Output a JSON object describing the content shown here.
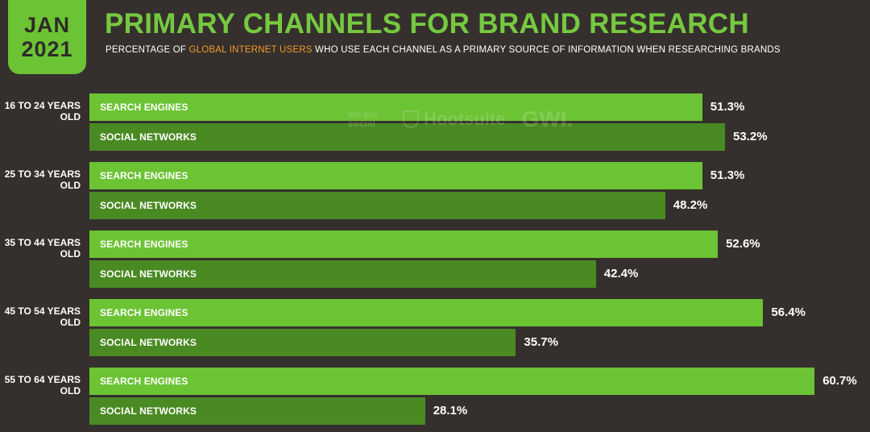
{
  "header": {
    "month": "JAN",
    "year": "2021",
    "title": "PRIMARY CHANNELS FOR BRAND RESEARCH",
    "subtitle_pre": "PERCENTAGE OF ",
    "subtitle_highlight": "GLOBAL INTERNET USERS",
    "subtitle_post": " WHO USE EACH CHANNEL AS A PRIMARY SOURCE OF INFORMATION WHEN RESEARCHING BRANDS"
  },
  "watermark": {
    "wearesocial": "we are social",
    "hootsuite": "Hootsuite",
    "gwi": "GWI."
  },
  "colors": {
    "background": "#35302d",
    "search_engines": "#6cc334",
    "social_networks": "#4a8a23",
    "title": "#76c93f",
    "highlight": "#f39a2a"
  },
  "chart_data": {
    "type": "bar",
    "orientation": "horizontal",
    "categories": [
      "16 TO 24 YEARS OLD",
      "25 TO 34 YEARS OLD",
      "35 TO 44 YEARS OLD",
      "45 TO 54 YEARS OLD",
      "55 TO 64 YEARS OLD"
    ],
    "series": [
      {
        "name": "SEARCH ENGINES",
        "values": [
          51.3,
          51.3,
          52.6,
          56.4,
          60.7
        ],
        "color": "#6cc334"
      },
      {
        "name": "SOCIAL NETWORKS",
        "values": [
          53.2,
          48.2,
          42.4,
          35.7,
          28.1
        ],
        "color": "#4a8a23"
      }
    ],
    "value_suffix": "%",
    "xlim": [
      0,
      100
    ]
  }
}
